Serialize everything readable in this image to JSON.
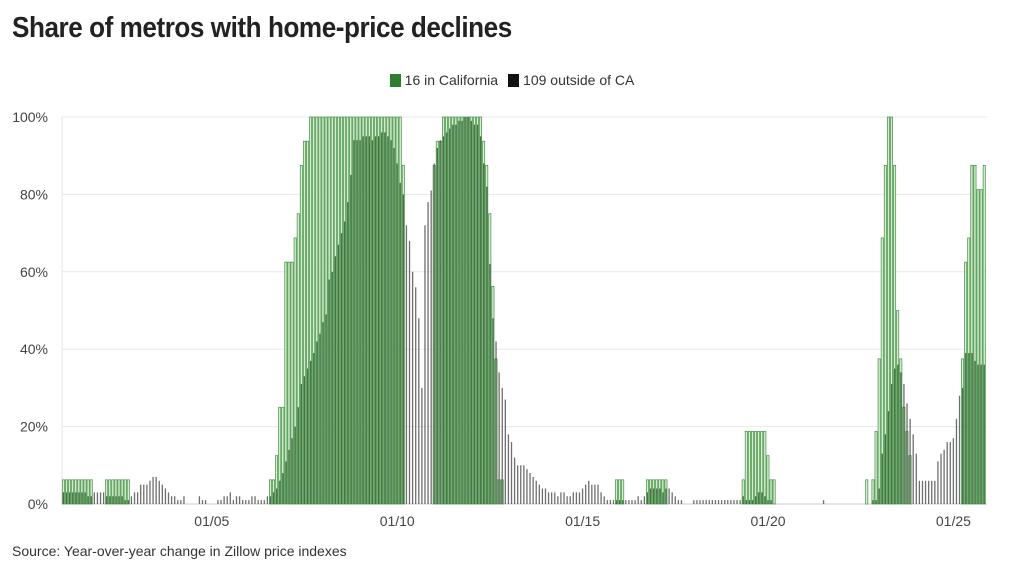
{
  "chart_data": {
    "type": "bar",
    "title": "Share of metros with home-price declines",
    "source": "Source: Year-over-year change in Zillow price indexes",
    "frequency": "monthly",
    "ylim": [
      0,
      100
    ],
    "y_ticks": [
      "0%",
      "20%",
      "40%",
      "60%",
      "80%",
      "100%"
    ],
    "y_tick_values": [
      0,
      20,
      40,
      60,
      80,
      100
    ],
    "x_ticks": [
      "01/05",
      "01/10",
      "01/15",
      "01/20",
      "01/25"
    ],
    "x_tick_years": [
      2005,
      2010,
      2015,
      2020,
      2025
    ],
    "grid": true,
    "legend_placement": "top-center",
    "series": [
      {
        "key": "ca",
        "name": "16 in California",
        "color": "#2e7d32"
      },
      {
        "key": "other",
        "name": "109 outside of CA",
        "color": "#111111"
      }
    ],
    "years": [
      {
        "year": 2001,
        "ca": [
          6.25,
          6.25,
          6.25,
          6.25,
          6.25,
          6.25,
          6.25,
          6.25,
          6.25,
          6.25,
          0,
          0
        ],
        "other": [
          3,
          3,
          3,
          3,
          3,
          3,
          3,
          3,
          2,
          2,
          3,
          3
        ]
      },
      {
        "year": 2002,
        "ca": [
          0,
          0,
          6.25,
          6.25,
          6.25,
          6.25,
          6.25,
          6.25,
          6.25,
          6.25,
          0,
          0
        ],
        "other": [
          3,
          3,
          2,
          2,
          2,
          2,
          2,
          2,
          1,
          1,
          2,
          3
        ]
      },
      {
        "year": 2003,
        "ca": [
          0,
          0,
          0,
          0,
          0,
          0,
          0,
          0,
          0,
          0,
          0,
          0
        ],
        "other": [
          3,
          5,
          5,
          5,
          6,
          7,
          7,
          6,
          5,
          4,
          3,
          2
        ]
      },
      {
        "year": 2004,
        "ca": [
          0,
          0,
          0,
          0,
          0,
          0,
          0,
          0,
          0,
          0,
          0,
          0
        ],
        "other": [
          2,
          1,
          1,
          2,
          0,
          0,
          0,
          0,
          2,
          1,
          1,
          0
        ]
      },
      {
        "year": 2005,
        "ca": [
          0,
          0,
          0,
          0,
          0,
          0,
          0,
          0,
          0,
          0,
          0,
          0
        ],
        "other": [
          0,
          0,
          1,
          1,
          2,
          2,
          3,
          1,
          2,
          2,
          1,
          1
        ]
      },
      {
        "year": 2006,
        "ca": [
          0,
          0,
          0,
          0,
          0,
          0,
          0,
          6.25,
          6.25,
          12.5,
          25,
          25
        ],
        "other": [
          1,
          2,
          2,
          1,
          1,
          1,
          2,
          2,
          3,
          4,
          6,
          8
        ]
      },
      {
        "year": 2007,
        "ca": [
          62.5,
          62.5,
          62.5,
          68.75,
          75,
          87.5,
          93.75,
          93.75,
          100,
          100,
          100,
          100
        ],
        "other": [
          11,
          14,
          17,
          20,
          25,
          31,
          33,
          35,
          37,
          39,
          42,
          44
        ]
      },
      {
        "year": 2008,
        "ca": [
          100,
          100,
          100,
          100,
          100,
          100,
          100,
          100,
          100,
          100,
          100,
          100
        ],
        "other": [
          47,
          49,
          58,
          60,
          64,
          67,
          70,
          73,
          78,
          85,
          94,
          94
        ]
      },
      {
        "year": 2009,
        "ca": [
          100,
          100,
          100,
          100,
          100,
          100,
          100,
          100,
          100,
          100,
          100,
          100
        ],
        "other": [
          94,
          95,
          95,
          95,
          94,
          95,
          95,
          96,
          96,
          95,
          94,
          92
        ]
      },
      {
        "year": 2010,
        "ca": [
          100,
          100,
          87.5,
          0,
          0,
          0,
          0,
          0,
          0,
          0,
          0,
          0
        ],
        "other": [
          88,
          83,
          80,
          72,
          68,
          60,
          56,
          48,
          30,
          72,
          78,
          81
        ]
      },
      {
        "year": 2011,
        "ca": [
          87.5,
          93.75,
          93.75,
          100,
          100,
          100,
          100,
          100,
          100,
          100,
          100,
          100
        ],
        "other": [
          88,
          92,
          94,
          95,
          96,
          97,
          98,
          98,
          99,
          99,
          100,
          100
        ]
      },
      {
        "year": 2012,
        "ca": [
          100,
          100,
          100,
          100,
          93.75,
          87.5,
          75,
          56.25,
          37.5,
          6.25,
          6.25,
          0
        ],
        "other": [
          99,
          98,
          98,
          95,
          88,
          82,
          62,
          48,
          42,
          34,
          30,
          27
        ]
      },
      {
        "year": 2013,
        "ca": [
          0,
          0,
          0,
          0,
          0,
          0,
          0,
          0,
          0,
          0,
          0,
          0
        ],
        "other": [
          18,
          16,
          12,
          10,
          10,
          10,
          9,
          8,
          7,
          6,
          5,
          4
        ]
      },
      {
        "year": 2014,
        "ca": [
          0,
          0,
          0,
          0,
          0,
          0,
          0,
          0,
          0,
          0,
          0,
          0
        ],
        "other": [
          4,
          3,
          3,
          3,
          2,
          3,
          3,
          2,
          2,
          3,
          3,
          3
        ]
      },
      {
        "year": 2015,
        "ca": [
          0,
          0,
          0,
          0,
          0,
          0,
          0,
          0,
          0,
          0,
          0,
          6.25
        ],
        "other": [
          4,
          5,
          6,
          5,
          5,
          5,
          3,
          2,
          1,
          1,
          1,
          1
        ]
      },
      {
        "year": 2016,
        "ca": [
          6.25,
          6.25,
          0,
          0,
          0,
          0,
          0,
          0,
          0,
          6.25,
          6.25,
          6.25
        ],
        "other": [
          1,
          1,
          1,
          1,
          1,
          1,
          2,
          1,
          2,
          3,
          4,
          4
        ]
      },
      {
        "year": 2017,
        "ca": [
          6.25,
          6.25,
          6.25,
          6.25,
          0,
          0,
          0,
          0,
          0,
          0,
          0,
          0
        ],
        "other": [
          4,
          4,
          3,
          4,
          4,
          3,
          2,
          1,
          1,
          0,
          0,
          0
        ]
      },
      {
        "year": 2018,
        "ca": [
          0,
          0,
          0,
          0,
          0,
          0,
          0,
          0,
          0,
          0,
          0,
          0
        ],
        "other": [
          1,
          1,
          1,
          1,
          1,
          1,
          1,
          1,
          1,
          1,
          1,
          1
        ]
      },
      {
        "year": 2019,
        "ca": [
          0,
          0,
          0,
          0,
          6.25,
          18.75,
          18.75,
          18.75,
          18.75,
          18.75,
          18.75,
          18.75
        ],
        "other": [
          1,
          1,
          1,
          1,
          2,
          1,
          1,
          1,
          2,
          3,
          3,
          2
        ]
      },
      {
        "year": 2020,
        "ca": [
          12.5,
          6.25,
          6.25,
          0,
          0,
          0,
          0,
          0,
          0,
          0,
          0,
          0
        ],
        "other": [
          1,
          1,
          0,
          0,
          0,
          0,
          0,
          0,
          0,
          0,
          0,
          0
        ]
      },
      {
        "year": 2021,
        "ca": [
          0,
          0,
          0,
          0,
          0,
          0,
          0,
          0,
          0,
          0,
          0,
          0
        ],
        "other": [
          0,
          0,
          0,
          0,
          0,
          0,
          1,
          0,
          0,
          0,
          0,
          0
        ]
      },
      {
        "year": 2022,
        "ca": [
          0,
          0,
          0,
          0,
          0,
          0,
          0,
          0,
          6.25,
          0,
          6.25,
          18.75
        ],
        "other": [
          0,
          0,
          0,
          0,
          0,
          0,
          0,
          0,
          0,
          0,
          1,
          1
        ]
      },
      {
        "year": 2023,
        "ca": [
          37.5,
          68.75,
          87.5,
          100,
          100,
          87.5,
          50,
          37.5,
          25,
          18.75,
          12.5,
          0
        ],
        "other": [
          4,
          13,
          18,
          24,
          31,
          35,
          36,
          34,
          31,
          26,
          22,
          18
        ]
      },
      {
        "year": 2024,
        "ca": [
          0,
          0,
          0,
          0,
          0,
          0,
          0,
          0,
          0,
          0,
          0,
          0
        ],
        "other": [
          13,
          6,
          6,
          6,
          6,
          6,
          6,
          11,
          13,
          14,
          16,
          16
        ]
      },
      {
        "year": 2025,
        "ca": [
          0,
          0,
          0,
          37.5,
          62.5,
          68.75,
          87.5,
          87.5,
          81.25,
          81.25,
          87.5
        ],
        "other": [
          17,
          22,
          28,
          30,
          39,
          39,
          39,
          37,
          36,
          36,
          36
        ]
      }
    ]
  }
}
